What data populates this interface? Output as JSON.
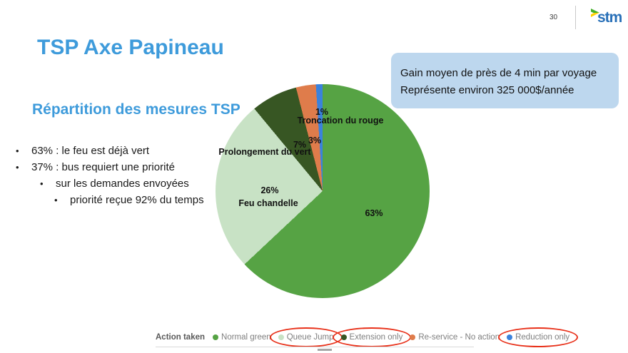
{
  "page": {
    "number": "30",
    "logo_text": "stm"
  },
  "title": "TSP Axe Papineau",
  "subtitle": "Répartition des mesures TSP",
  "bullets": [
    {
      "level": 1,
      "text": "63% : le feu est déjà vert"
    },
    {
      "level": 1,
      "text": "37% : bus requiert une priorité"
    },
    {
      "level": 2,
      "text": "sur les demandes envoyées"
    },
    {
      "level": 3,
      "text": "priorité reçue 92% du temps"
    }
  ],
  "callout": {
    "line1": "Gain moyen de près de 4 min par voyage",
    "line2": "Représente environ 325 000$/année",
    "bg_color": "#BDD7EE"
  },
  "chart_data": {
    "type": "pie",
    "direction": "clockwise",
    "start_angle_deg": 0,
    "legend_position": "bottom",
    "legend_title": "Action taken",
    "annotation_color": "#E8311A",
    "series": [
      {
        "name": "Normal green",
        "value": 63,
        "color": "#56A344",
        "slice_label": "63%",
        "slice_sublabel": "",
        "circled": false
      },
      {
        "name": "Queue Jump",
        "value": 26,
        "color": "#C8E2C5",
        "slice_label": "26%",
        "slice_sublabel": "Feu chandelle",
        "circled": true
      },
      {
        "name": "Extension only",
        "value": 7,
        "color": "#375623",
        "slice_label": "7%",
        "slice_sublabel": "Prolongement du vert",
        "circled": true
      },
      {
        "name": "Re-service - No action",
        "value": 3,
        "color": "#DF7C4B",
        "slice_label": "3%",
        "slice_sublabel": "",
        "circled": false
      },
      {
        "name": "Reduction only",
        "value": 1,
        "color": "#3B82DC",
        "slice_label": "1%",
        "slice_sublabel": "Troncation du rouge",
        "circled": true
      }
    ]
  }
}
